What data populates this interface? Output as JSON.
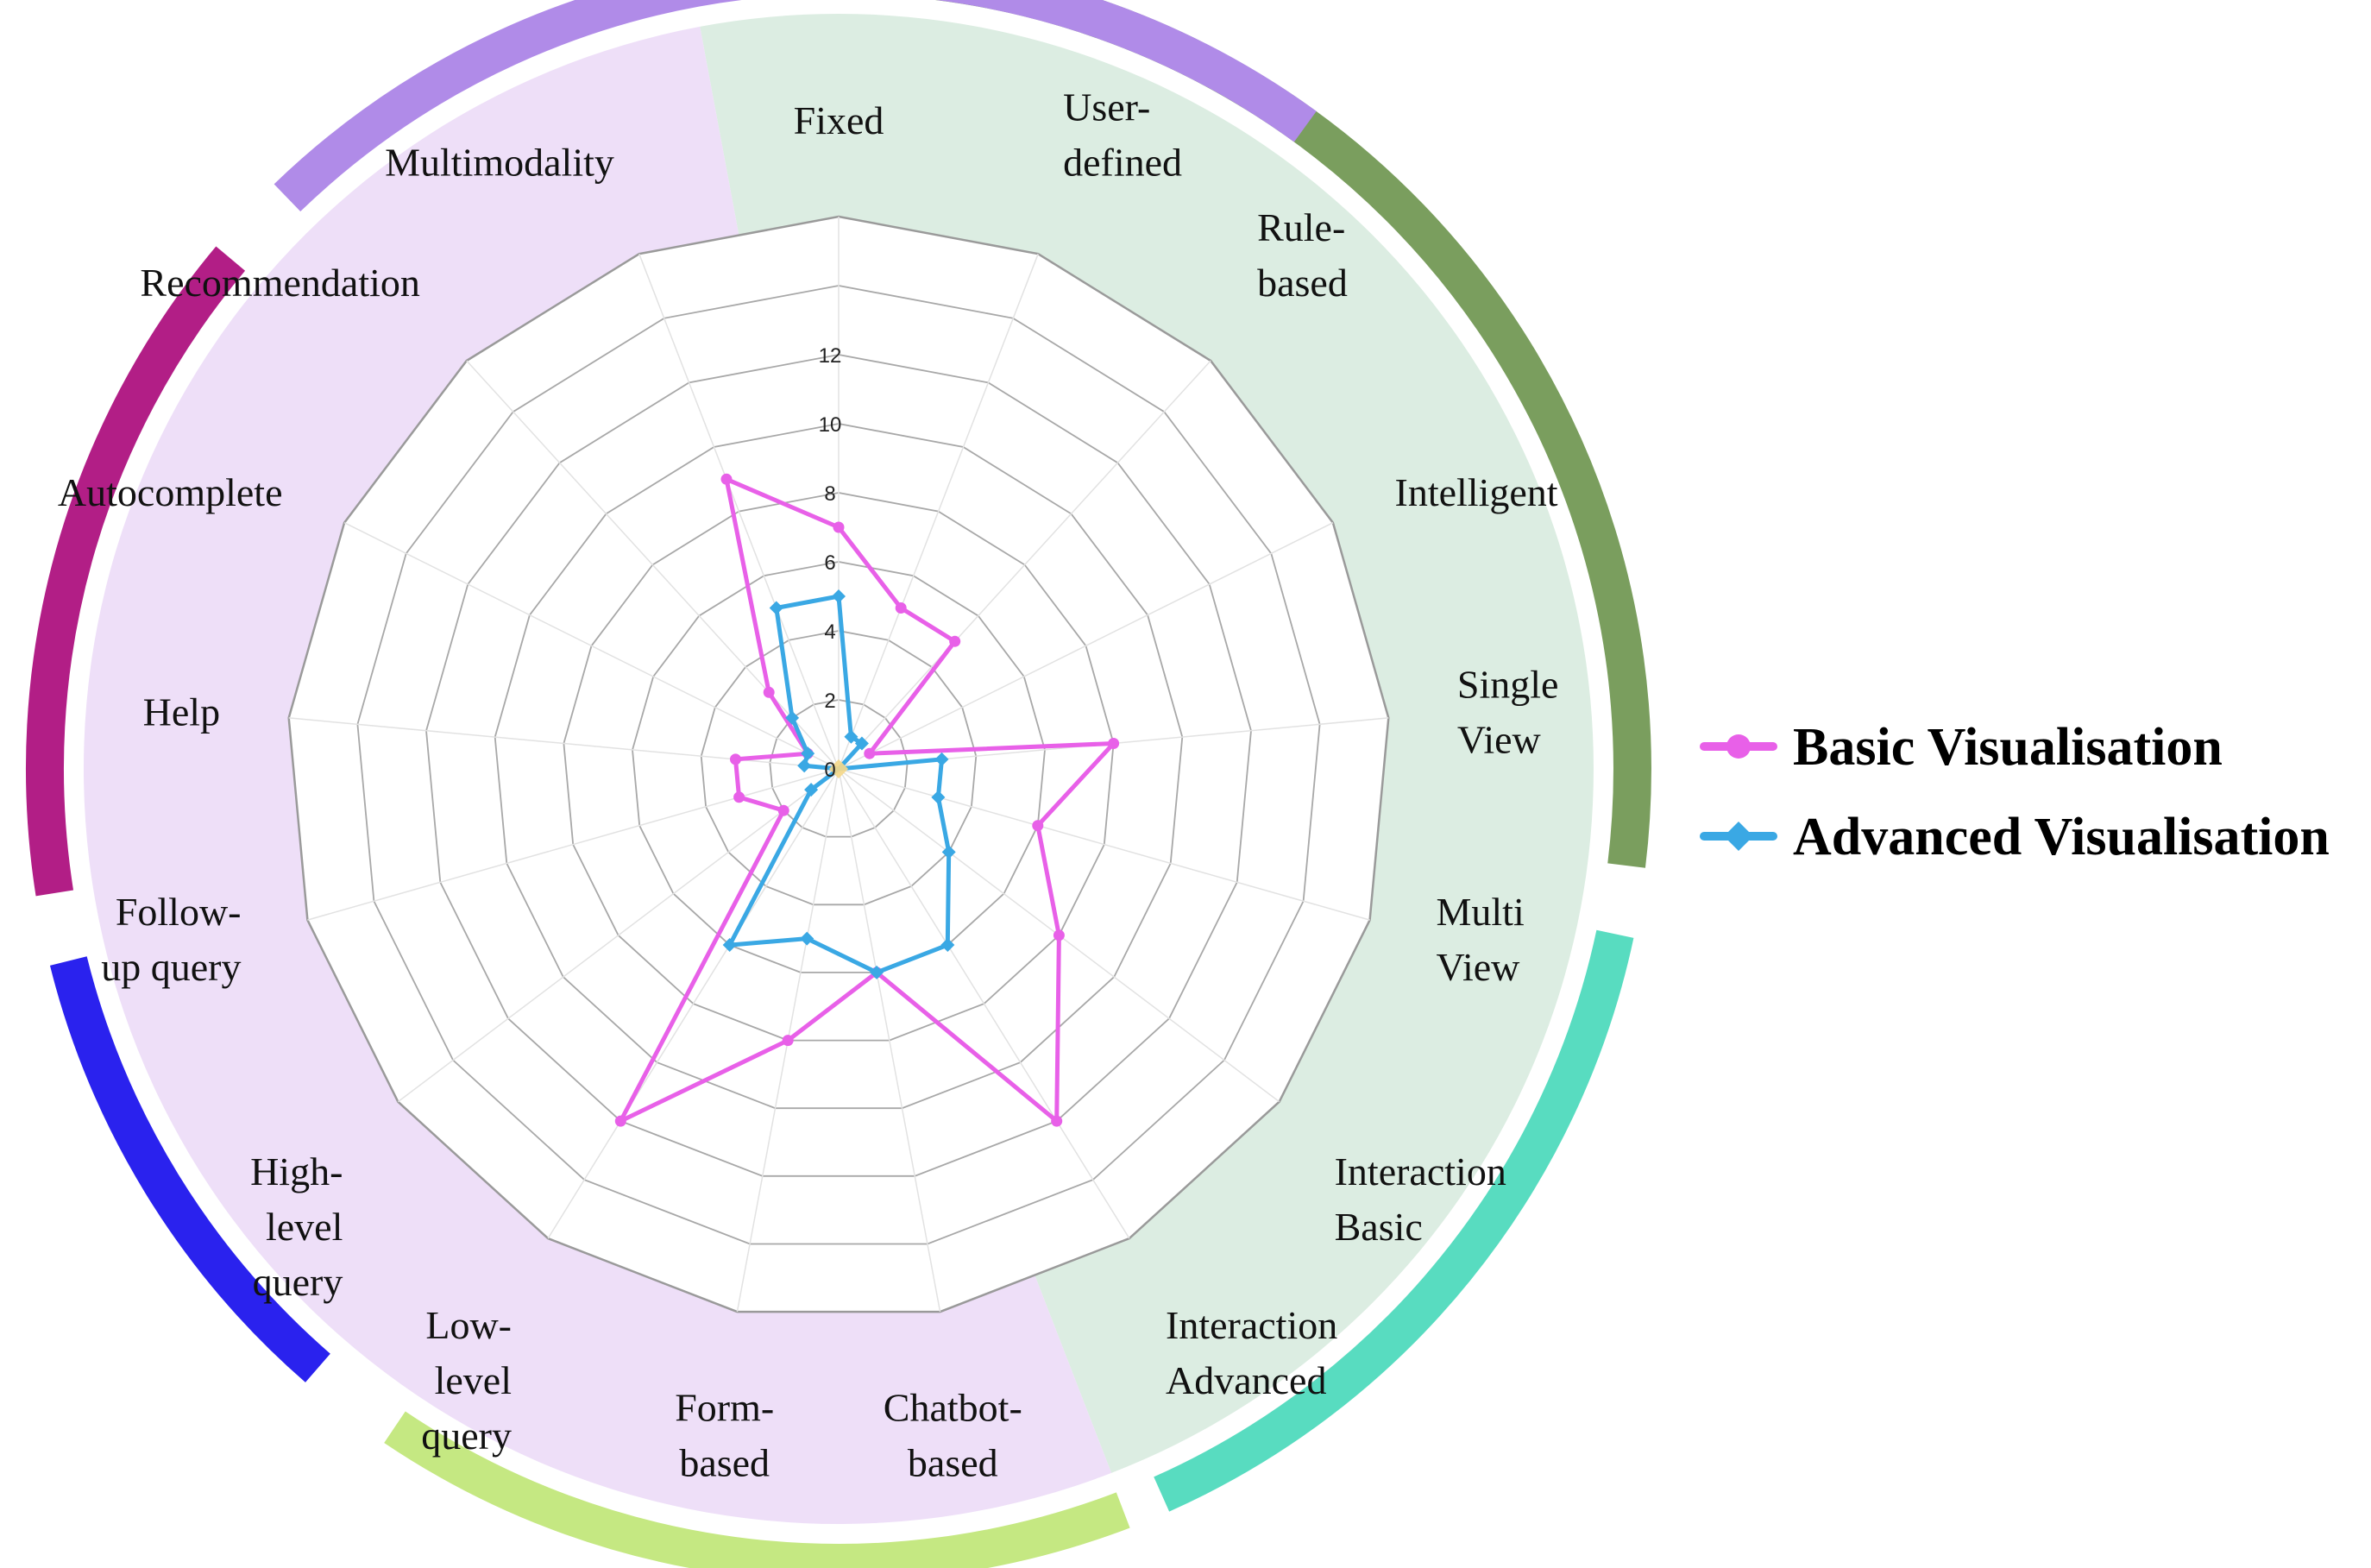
{
  "chart_data": {
    "type": "radar",
    "title": "",
    "categories": [
      "Fixed",
      "User-defined",
      "Rule-based",
      "Intelligent",
      "Single View",
      "Multi View",
      "Interaction Basic",
      "Interaction Advanced",
      "Chatbot-based",
      "Form-based",
      "Low-level query",
      "High-level query",
      "Follow-up query",
      "Help",
      "Autocomplete",
      "Recommendation",
      "Multimodality"
    ],
    "category_lines": [
      [
        "Fixed"
      ],
      [
        "User-",
        "defined"
      ],
      [
        "Rule-",
        "based"
      ],
      [
        "Intelligent"
      ],
      [
        "Single",
        "View"
      ],
      [
        "Multi",
        "View"
      ],
      [
        "Interaction",
        "Basic"
      ],
      [
        "Interaction",
        "Advanced"
      ],
      [
        "Chatbot-",
        "based"
      ],
      [
        "Form-",
        "based"
      ],
      [
        "Low-",
        "level",
        "query"
      ],
      [
        "High-",
        "level",
        "query"
      ],
      [
        "Follow-",
        "up query"
      ],
      [
        "Help"
      ],
      [
        "Autocomplete"
      ],
      [
        "Recommendation"
      ],
      [
        "Multimodality"
      ]
    ],
    "series": [
      {
        "name": "Basic Visualisation",
        "color": "#e860e8",
        "marker": "circle",
        "values": [
          7,
          5,
          5,
          1,
          8,
          6,
          8,
          12,
          6,
          8,
          12,
          2,
          3,
          3,
          1,
          3,
          9
        ]
      },
      {
        "name": "Advanced Visualisation",
        "color": "#3aa8e4",
        "marker": "diamond",
        "values": [
          5,
          1,
          1,
          0,
          3,
          3,
          4,
          6,
          6,
          5,
          6,
          1,
          0,
          1,
          1,
          2,
          5
        ]
      }
    ],
    "rlim": [
      0,
      16
    ],
    "tick_values": [
      0,
      2,
      4,
      6,
      8,
      10,
      12
    ],
    "tick_labels": [
      "0",
      "2",
      "4",
      "6",
      "8",
      "10",
      "12"
    ],
    "grid_levels": 8,
    "legend_position": "right",
    "groups": [
      {
        "from": "Fixed",
        "to": "Interaction Advanced",
        "fill": "#dcede2"
      },
      {
        "from": "Chatbot-based",
        "to": "Multimodality",
        "fill": "#eedff8"
      }
    ],
    "outer_arcs": [
      {
        "color": "#7a9e5e",
        "from_deg": -5,
        "to_deg": 97
      },
      {
        "color": "#58dcc0",
        "from_deg": 102,
        "to_deg": 156
      },
      {
        "color": "#c5e882",
        "from_deg": 159,
        "to_deg": 214
      },
      {
        "color": "#2a22ee",
        "from_deg": 221,
        "to_deg": 256
      },
      {
        "color": "#b21e86",
        "from_deg": 261,
        "to_deg": 310
      },
      {
        "color": "#b08be8",
        "from_deg": 316,
        "to_deg": 396
      }
    ]
  }
}
